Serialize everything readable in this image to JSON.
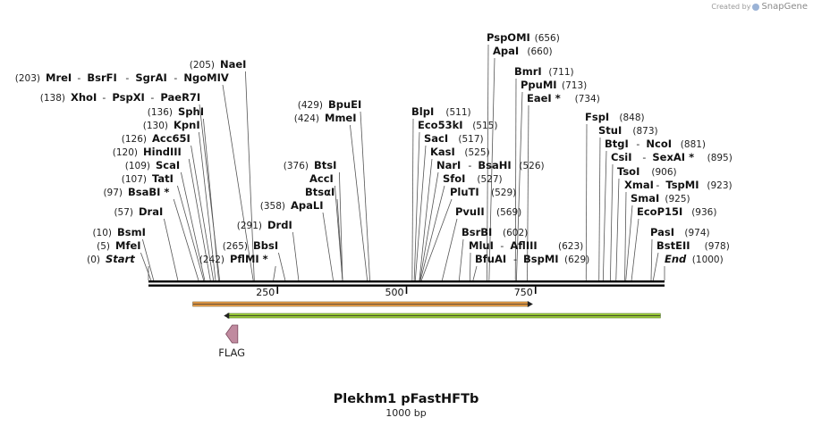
{
  "credit": {
    "prefix": "Created by",
    "brand": "SnapGene"
  },
  "title": "Plekhm1 pFastHFTb",
  "subtitle": "1000 bp",
  "ticks": [
    250,
    500,
    750
  ],
  "sites": [
    {
      "name": "Start",
      "pos": 0,
      "label": "(0)",
      "italic": true
    },
    {
      "name": "MfeI",
      "pos": 5,
      "label": "(5)"
    },
    {
      "name": "BsmI",
      "pos": 10,
      "label": "(10)"
    },
    {
      "name": "DraI",
      "pos": 57,
      "label": "(57)"
    },
    {
      "name": "BsaBI *",
      "pos": 97,
      "label": "(97)"
    },
    {
      "name": "TatI",
      "pos": 107,
      "label": "(107)"
    },
    {
      "name": "ScaI",
      "pos": 109,
      "label": "(109)"
    },
    {
      "name": "HindIII",
      "pos": 120,
      "label": "(120)"
    },
    {
      "name": "Acc65I",
      "pos": 126,
      "label": "(126)"
    },
    {
      "name": "KpnI",
      "pos": 130,
      "label": "(130)"
    },
    {
      "name": "SphI",
      "pos": 136,
      "label": "(136)"
    },
    {
      "name": "XhoI",
      "pos": 138,
      "label": "(138)",
      "group": [
        "XhoI",
        "PspXI",
        "PaeR7I"
      ]
    },
    {
      "name": "MreI",
      "pos": 203,
      "label": "(203)",
      "group": [
        "MreI",
        "BsrFI",
        "SgrAI",
        "NgoMIV"
      ]
    },
    {
      "name": "NaeI",
      "pos": 205,
      "label": "(205)"
    },
    {
      "name": "PflMI *",
      "pos": 242,
      "label": "(242)"
    },
    {
      "name": "BbsI",
      "pos": 265,
      "label": "(265)"
    },
    {
      "name": "DrdI",
      "pos": 291,
      "label": "(291)"
    },
    {
      "name": "ApaLI",
      "pos": 358,
      "label": "(358)"
    },
    {
      "name": "BtsαI",
      "pos": 376,
      "label": ""
    },
    {
      "name": "AccI",
      "pos": 376,
      "label": ""
    },
    {
      "name": "BtsI",
      "pos": 376,
      "label": "(376)"
    },
    {
      "name": "MmeI",
      "pos": 424,
      "label": "(424)"
    },
    {
      "name": "BpuEI",
      "pos": 429,
      "label": "(429)"
    },
    {
      "name": "BlpI",
      "pos": 511,
      "label": "(511)"
    },
    {
      "name": "Eco53kI",
      "pos": 515,
      "label": "(515)"
    },
    {
      "name": "SacI",
      "pos": 517,
      "label": "(517)"
    },
    {
      "name": "KasI",
      "pos": 525,
      "label": "(525)"
    },
    {
      "name": "NarI",
      "pos": 526,
      "label": "(526)",
      "group": [
        "NarI",
        "BsaHI"
      ]
    },
    {
      "name": "SfoI",
      "pos": 527,
      "label": "(527)"
    },
    {
      "name": "PluTI",
      "pos": 529,
      "label": "(529)"
    },
    {
      "name": "PvuII",
      "pos": 569,
      "label": "(569)"
    },
    {
      "name": "BsrBI",
      "pos": 602,
      "label": "(602)"
    },
    {
      "name": "MluI",
      "pos": 623,
      "label": "(623)",
      "group": [
        "MluI",
        "AflIII"
      ]
    },
    {
      "name": "BfuAI",
      "pos": 629,
      "label": "(629)",
      "group": [
        "BfuAI",
        "BspMI"
      ]
    },
    {
      "name": "PspOMI",
      "pos": 656,
      "label": "(656)"
    },
    {
      "name": "ApaI",
      "pos": 660,
      "label": "(660)"
    },
    {
      "name": "BmrI",
      "pos": 711,
      "label": "(711)"
    },
    {
      "name": "PpuMI",
      "pos": 713,
      "label": "(713)"
    },
    {
      "name": "EaeI *",
      "pos": 734,
      "label": "(734)"
    },
    {
      "name": "FspI",
      "pos": 848,
      "label": "(848)"
    },
    {
      "name": "StuI",
      "pos": 873,
      "label": "(873)"
    },
    {
      "name": "BtgI",
      "pos": 881,
      "label": "(881)",
      "group": [
        "BtgI",
        "NcoI"
      ]
    },
    {
      "name": "CsiI",
      "pos": 895,
      "label": "(895)",
      "group": [
        "CsiI",
        "SexAI *"
      ]
    },
    {
      "name": "TsoI",
      "pos": 906,
      "label": "(906)"
    },
    {
      "name": "XmaI",
      "pos": 923,
      "label": "(923)",
      "group": [
        "XmaI",
        "TspMI"
      ]
    },
    {
      "name": "SmaI",
      "pos": 925,
      "label": "(925)"
    },
    {
      "name": "EcoP15I",
      "pos": 936,
      "label": "(936)"
    },
    {
      "name": "PasI",
      "pos": 974,
      "label": "(974)"
    },
    {
      "name": "BstEII",
      "pos": 978,
      "label": "(978)"
    },
    {
      "name": "End",
      "pos": 1000,
      "label": "(1000)",
      "italic": true
    }
  ],
  "features": [
    {
      "name": "orange-feature",
      "start": 86,
      "end": 745,
      "color": "#f0a24b",
      "direction": "forward"
    },
    {
      "name": "green-feature",
      "start": 146,
      "end": 992,
      "color": "#9ccc3a",
      "direction": "reverse"
    },
    {
      "name": "FLAG",
      "start": 150,
      "end": 173,
      "color": "#c08a9f",
      "direction": "reverse",
      "label": "FLAG"
    }
  ],
  "colors": {
    "backbone": "#000000",
    "orange": "#f0a24b",
    "green": "#9ccc3a",
    "flag": "#c08a9f"
  }
}
